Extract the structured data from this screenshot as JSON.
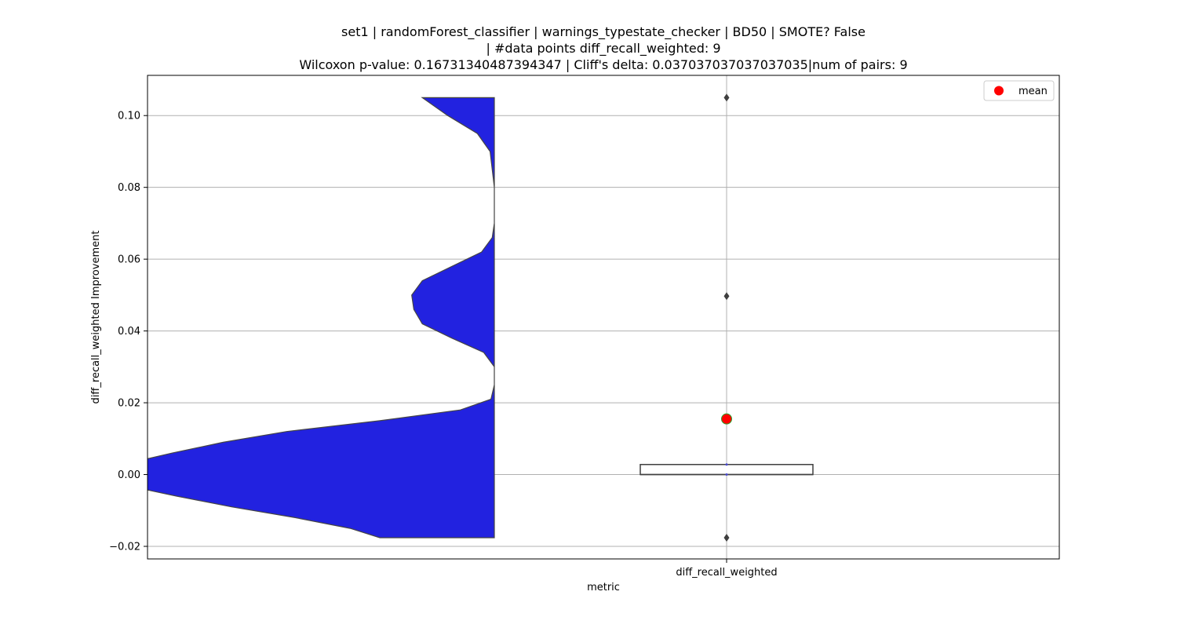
{
  "chart_data": {
    "type": "violin",
    "title_lines": [
      "set1 | randomForest_classifier | warnings_typestate_checker | BD50 | SMOTE? False",
      "| #data points diff_recall_weighted: 9",
      "Wilcoxon p-value: 0.16731340487394347 | Cliff's delta: 0.037037037037037035|num of pairs: 9"
    ],
    "xlabel": "metric",
    "ylabel": "diff_recall_weighted Improvement",
    "categories": [
      "diff_recall_weighted"
    ],
    "ylim": [
      -0.0235,
      0.1112
    ],
    "yticks": [
      -0.02,
      0.0,
      0.02,
      0.04,
      0.06,
      0.08,
      0.1
    ],
    "ytick_labels": [
      "−0.02",
      "0.00",
      "0.02",
      "0.04",
      "0.06",
      "0.08",
      "0.10"
    ],
    "grid": true,
    "legend": {
      "position": "top-right",
      "entries": [
        {
          "label": "mean",
          "color": "#ff0000"
        }
      ]
    },
    "violin": {
      "color": "#2222e0",
      "edge_color": "#444444",
      "y_min": -0.0176,
      "y_max": 0.105,
      "density_profile": [
        [
          -0.0176,
          0.27
        ],
        [
          -0.015,
          0.34
        ],
        [
          -0.012,
          0.47
        ],
        [
          -0.009,
          0.62
        ],
        [
          -0.006,
          0.75
        ],
        [
          -0.003,
          0.87
        ],
        [
          0.0,
          0.96
        ],
        [
          0.003,
          0.87
        ],
        [
          0.006,
          0.76
        ],
        [
          0.009,
          0.64
        ],
        [
          0.012,
          0.49
        ],
        [
          0.015,
          0.27
        ],
        [
          0.018,
          0.08
        ],
        [
          0.021,
          0.008
        ],
        [
          0.025,
          0.0
        ],
        [
          0.03,
          0.0
        ],
        [
          0.034,
          0.025
        ],
        [
          0.038,
          0.1
        ],
        [
          0.042,
          0.17
        ],
        [
          0.046,
          0.19
        ],
        [
          0.05,
          0.195
        ],
        [
          0.054,
          0.17
        ],
        [
          0.058,
          0.1
        ],
        [
          0.062,
          0.03
        ],
        [
          0.066,
          0.005
        ],
        [
          0.07,
          0.0
        ],
        [
          0.08,
          0.0
        ],
        [
          0.09,
          0.01
        ],
        [
          0.095,
          0.04
        ],
        [
          0.1,
          0.11
        ],
        [
          0.105,
          0.17
        ]
      ]
    },
    "box": {
      "q1": 0.0,
      "median": 0.0,
      "q3": 0.0028,
      "whisker_low": 0.0,
      "whisker_high": 0.0028,
      "outliers": [
        0.105,
        0.0497,
        -0.0176
      ],
      "mean": 0.0155
    },
    "colors": {
      "mean_marker": "#ff0000",
      "mean_edge": "#2ca02c",
      "grid": "#b0b0b0",
      "box_edge": "#3f3f3f"
    }
  }
}
